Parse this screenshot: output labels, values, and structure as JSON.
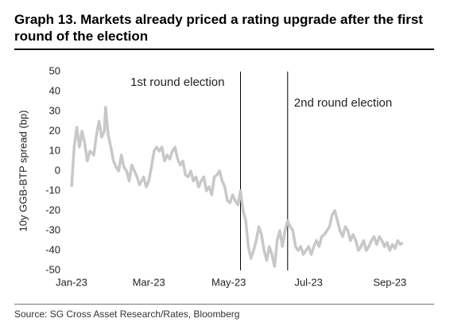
{
  "chart_data": {
    "type": "line",
    "title": "Graph 13. Markets already priced a rating upgrade after the first round of the election",
    "ylabel": "10y GGB-BTP spread (bp)",
    "source": "Source: SG Cross Asset Research/Rates, Bloomberg",
    "xlim": [
      0,
      258
    ],
    "xticks": [
      {
        "value": 0,
        "label": "Jan-23"
      },
      {
        "value": 59,
        "label": "Mar-23"
      },
      {
        "value": 120,
        "label": "May-23"
      },
      {
        "value": 181,
        "label": "Jul-23"
      },
      {
        "value": 243,
        "label": "Sep-23"
      }
    ],
    "ylim": [
      -50,
      50
    ],
    "yticks": [
      -50,
      -40,
      -30,
      -20,
      -10,
      0,
      10,
      20,
      30,
      40,
      50
    ],
    "annotations": [
      {
        "text": "1st round election",
        "x": 129
      },
      {
        "text": "2nd round election",
        "x": 165
      }
    ],
    "series": [
      {
        "name": "10y GGB-BTP spread",
        "color": "#c8c8c8",
        "x": [
          0,
          2,
          4,
          6,
          8,
          10,
          12,
          14,
          17,
          19,
          21,
          23,
          25,
          26,
          28,
          30,
          32,
          34,
          36,
          38,
          40,
          42,
          44,
          46,
          48,
          50,
          52,
          55,
          57,
          59,
          61,
          63,
          65,
          67,
          69,
          71,
          73,
          75,
          77,
          79,
          81,
          83,
          85,
          87,
          89,
          91,
          93,
          95,
          97,
          99,
          101,
          103,
          105,
          107,
          109,
          111,
          113,
          115,
          117,
          119,
          121,
          123,
          125,
          127,
          129,
          131,
          133,
          135,
          137,
          139,
          141,
          143,
          145,
          147,
          149,
          151,
          153,
          155,
          157,
          159,
          161,
          163,
          165,
          167,
          169,
          171,
          173,
          175,
          177,
          179,
          181,
          183,
          185,
          187,
          189,
          191,
          193,
          195,
          197,
          199,
          201,
          203,
          205,
          207,
          209,
          211,
          213,
          215,
          217,
          219,
          221,
          223,
          225,
          227,
          229,
          231,
          233,
          235,
          237,
          239,
          241,
          243,
          245,
          247,
          249,
          251,
          253
        ],
        "values": [
          -8,
          12,
          22,
          12,
          20,
          14,
          5,
          10,
          8,
          18,
          25,
          17,
          20,
          32,
          18,
          12,
          5,
          2,
          0,
          8,
          2,
          0,
          -5,
          3,
          0,
          -3,
          -7,
          -3,
          -8,
          -5,
          2,
          10,
          12,
          10,
          12,
          5,
          8,
          6,
          10,
          12,
          6,
          3,
          5,
          -2,
          -3,
          0,
          -5,
          -3,
          -8,
          -5,
          -3,
          -10,
          -8,
          -12,
          -3,
          -2,
          0,
          -5,
          -8,
          -15,
          -16,
          -12,
          -15,
          -17,
          -10,
          -20,
          -25,
          -38,
          -44,
          -40,
          -35,
          -28,
          -32,
          -40,
          -45,
          -38,
          -42,
          -48,
          -35,
          -30,
          -38,
          -30,
          -25,
          -28,
          -30,
          -38,
          -40,
          -38,
          -42,
          -40,
          -38,
          -42,
          -38,
          -35,
          -38,
          -33,
          -32,
          -30,
          -28,
          -22,
          -20,
          -25,
          -30,
          -33,
          -28,
          -30,
          -35,
          -32,
          -35,
          -40,
          -38,
          -35,
          -40,
          -38,
          -35,
          -33,
          -37,
          -33,
          -35,
          -38,
          -36,
          -40,
          -37,
          -39,
          -35,
          -37,
          -36
        ]
      }
    ]
  }
}
